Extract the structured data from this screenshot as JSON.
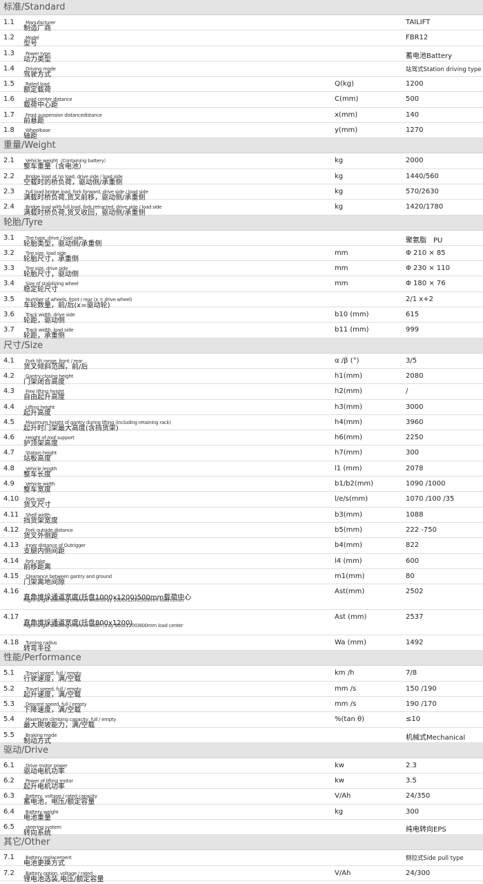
{
  "sections": [
    {
      "title": "标准/Standard",
      "rows": [
        {
          "no": "1.1",
          "label": "制造厂商",
          "note": "Manufacturer",
          "value": "TAILIFT"
        },
        {
          "no": "1.2",
          "label": "型号",
          "note": "Model",
          "value": "FBR12"
        },
        {
          "no": "1.3",
          "label": "动力类型",
          "note": "Power type",
          "value": "蓄电池Battery"
        },
        {
          "no": "1.4",
          "label": "驾驶方式",
          "note": "Driving mode",
          "value": "站驾式Station driving type"
        },
        {
          "no": "1.5",
          "label": "额定载荷",
          "note": "Rated load",
          "unit": "Q(kg)",
          "value": "1200"
        },
        {
          "no": "1.6",
          "label": "载荷中心距",
          "note": "Load center distance",
          "unit": "C(mm)",
          "value": "500"
        },
        {
          "no": "1.7",
          "label": "前悬距",
          "note": "Front suspension distancedistance",
          "unit": "x(mm)",
          "value": "140"
        },
        {
          "no": "1.8",
          "label": "轴距",
          "note": "Wheelbase",
          "unit": "y(mm)",
          "value": "1270"
        }
      ]
    },
    {
      "title": "重量/Weight",
      "rows": [
        {
          "no": "2.1",
          "label": "整车重量（含电池）",
          "note": "Vehicle weight（Containing battery）",
          "unit": "kg",
          "value": "2000"
        },
        {
          "no": "2.2",
          "label": "空载时的桥负荷，驱动侧/承重侧",
          "note": "Bridge load at no load, drive side / load side",
          "unit": "kg",
          "value": "1440/560"
        },
        {
          "no": "2.3",
          "label": "满载时桥负荷,货叉前移，驱动侧/承重侧",
          "note": "Full load bridge load, fork forward, drive side / load side",
          "unit": "kg",
          "value": "570/2630"
        },
        {
          "no": "2.4",
          "label": "满载时桥负荷,货叉收回，驱动侧/承重侧",
          "note": "Bridge load with full load, fork retracted, drive side / load side",
          "unit": "kg",
          "value": "1420/1780"
        }
      ]
    },
    {
      "title": "轮胎/Tyre",
      "rows": [
        {
          "no": "3.1",
          "label": "轮胎类型，驱动侧/承重侧",
          "note": "Tire type, drive / load side",
          "value": "聚氨脂　PU"
        },
        {
          "no": "3.2",
          "label": "轮胎尺寸，承重侧",
          "note": "Tire size, load side",
          "unit": "mm",
          "value": "Φ 210 × 85"
        },
        {
          "no": "3.3",
          "label": "轮胎尺寸，驱动侧",
          "note": "Tire size, drive side",
          "unit": "mm",
          "value": "Φ 230 × 110"
        },
        {
          "no": "3.4",
          "label": "稳定轮尺寸",
          "note": "Size of stabilizing wheel",
          "unit": "mm",
          "value": "Φ 180 × 76"
        },
        {
          "no": "3.5",
          "label": "车轮数量，前/后(x=驱动轮)",
          "note": "Number of wheels, front / rear (x = drive wheel)",
          "value": "2/1 x+2"
        },
        {
          "no": "3.6",
          "label": "轮距，驱动侧",
          "note": "Track width, drive side",
          "unit": "b10 (mm)",
          "value": "615"
        },
        {
          "no": "3.7",
          "label": "轮距，承重侧",
          "note": "Track width, load side",
          "unit": "b11 (mm)",
          "value": "999"
        }
      ]
    },
    {
      "title": "尺寸/Size",
      "rows": [
        {
          "no": "4.1",
          "label": "货叉倾斜范围，前/后",
          "note": "Fork tilt range, front / rear",
          "unit": "α /β (°)",
          "value": "3/5"
        },
        {
          "no": "4.2",
          "label": "门架闭合高度",
          "note": "Gantry closing height",
          "unit": "h1(mm)",
          "value": "2080"
        },
        {
          "no": "4.3",
          "label": "自由起升高度",
          "note": "Free lifting height",
          "unit": "h2(mm)",
          "value": "/"
        },
        {
          "no": "4.4",
          "label": "起升高度",
          "note": "Lifting height",
          "unit": "h3(mm)",
          "value": "3000"
        },
        {
          "no": "4.5",
          "label": "起升时门架最大高度(含挡货架)",
          "note": "Maximum height of gantry during lifting (including retaining rack)",
          "unit": "h4(mm)",
          "value": "3960"
        },
        {
          "no": "4.6",
          "label": "护顶架高度",
          "note": "Height of roof support",
          "unit": "h6(mm)",
          "value": "2250"
        },
        {
          "no": "4.7",
          "label": "站板高度",
          "note": "Station height",
          "unit": "h7(mm)",
          "value": "300"
        },
        {
          "no": "4.8",
          "label": "整车长度",
          "note": "Vehicle length",
          "unit": "l1 (mm)",
          "value": "2078"
        },
        {
          "no": "4.9",
          "label": "整车宽度",
          "note": "Vehicle width",
          "unit": "b1/b2(mm)",
          "value": "1090 /1000"
        },
        {
          "no": "4.10",
          "label": "货叉尺寸",
          "note": "Fork size",
          "unit": "l/e/s(mm)",
          "value": "1070 /100 /35"
        },
        {
          "no": "4.11",
          "label": "挡货架宽度",
          "note": "Shelf width",
          "unit": "b3(mm)",
          "value": "1088"
        },
        {
          "no": "4.12",
          "label": "货叉外侧距",
          "note": "Fork outside distance",
          "unit": "b5(mm)",
          "value": "222 -750"
        },
        {
          "no": "4.13",
          "label": "支腿内侧间距",
          "note": "Inner distance of Outrigger",
          "unit": "b4(mm)",
          "value": "822"
        },
        {
          "no": "4.14",
          "label": "前移距离",
          "note": "fork rake",
          "unit": "l4 (mm)",
          "value": "600"
        },
        {
          "no": "4.15",
          "label": "门架离地间隙",
          "note": "Clearance between gantry and ground",
          "unit": "m1(mm)",
          "value": "80"
        },
        {
          "no": "4.16",
          "label": "直角堆垛通道宽度(托盘1000x1200)500mm载荷中心",
          "note": "Right angle stacking channel width(tray 1000x1200)500mm load center",
          "note_line2": true,
          "unit": "Ast(mm)",
          "value": "2502"
        },
        {
          "no": "4.17",
          "label": "直角堆垛通道宽度(托盘800x1200)",
          "note": "Right angle stacking channel width (tray 800x1200)600mm load center",
          "note_line2": true,
          "unit": "Ast (mm)",
          "value": "2537"
        },
        {
          "no": "4.18",
          "label": "转弯半径",
          "note": "Turning radius",
          "unit": "Wa (mm)",
          "value": "1492"
        }
      ]
    },
    {
      "title": "性能/Performance",
      "rows": [
        {
          "no": "5.1",
          "label": "行驶速度，满/空载",
          "note": "Travel speed, full / empty",
          "unit": "km /h",
          "value": "7/8"
        },
        {
          "no": "5.2",
          "label": "起升速度，满/空载",
          "note": "Travel speed, full / empty",
          "unit": "mm /s",
          "value": "150 /190"
        },
        {
          "no": "5.3",
          "label": "下降速度，满/空载",
          "note": "Descent speed, full / empty",
          "unit": "mm /s",
          "value": "190 /170"
        },
        {
          "no": "5.4",
          "label": "最大爬坡能力，满/空载",
          "note": "Maximum climbing capacity, full / empty",
          "unit": "%(tan θ)",
          "value": "≤10"
        },
        {
          "no": "5.5",
          "label": "制动方式",
          "note": "Braking mode",
          "value": "机械式Mechanical"
        }
      ]
    },
    {
      "title": "驱动/Drive",
      "rows": [
        {
          "no": "6.1",
          "label": "驱动电机功率",
          "note": "Drive motor power",
          "unit": "kw",
          "value": "2.3"
        },
        {
          "no": "6.2",
          "label": "起升电机功率",
          "note": "Power of lifting motor",
          "unit": "kw",
          "value": "3.5"
        },
        {
          "no": "6.3",
          "label": "蓄电池，电压/额定容量",
          "note": "Battery, voltage / rated capacity",
          "unit": "V/Ah",
          "value": "24/350"
        },
        {
          "no": "6.4",
          "label": "电池重量",
          "note": "Battery weight",
          "unit": "kg",
          "value": "300"
        },
        {
          "no": "6.5",
          "label": "转向系统",
          "note": "steering system",
          "value": "纯电转向EPS"
        }
      ]
    },
    {
      "title": "其它/Other",
      "rows": [
        {
          "no": "7.1",
          "label": "电池更换方式",
          "note": "Battery replacement",
          "value": "侧拉式Side pull type"
        },
        {
          "no": "7.2",
          "label": "锂电池选装,电压/额定容量",
          "note": "Battery option, voltage / rated",
          "unit": "V/Ah",
          "value": "24/300"
        }
      ]
    }
  ]
}
